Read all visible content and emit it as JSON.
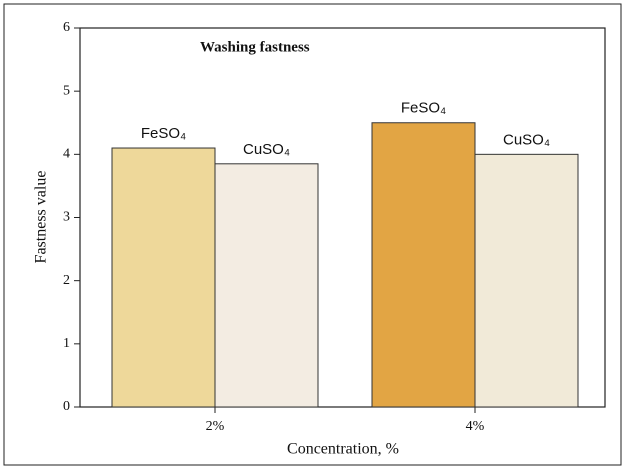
{
  "chart_data": {
    "type": "bar",
    "title": "Washing fastness",
    "x_label": "Concentration, %",
    "y_label": "Fastness value",
    "categories": [
      "2%",
      "4%"
    ],
    "series": [
      {
        "name": "FeSO₄",
        "colors": [
          "#eed89a",
          "#e2a544"
        ],
        "values": [
          4.1,
          4.5
        ]
      },
      {
        "name": "CuSO₄",
        "colors": [
          "#f3ece2",
          "#f1ead8"
        ],
        "values": [
          3.85,
          4.0
        ]
      }
    ],
    "ylim": [
      0,
      6
    ],
    "yticks": [
      0,
      1,
      2,
      3,
      4,
      5,
      6
    ]
  }
}
